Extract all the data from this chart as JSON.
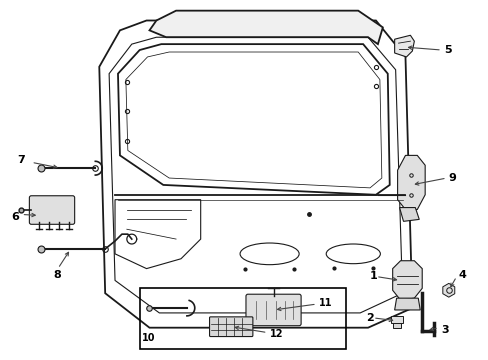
{
  "background_color": "#ffffff",
  "line_color": "#1a1a1a",
  "label_color": "#000000",
  "border_color": "#000000",
  "fig_width": 4.89,
  "fig_height": 3.6,
  "dpi": 100,
  "arrow_color": "#444444"
}
